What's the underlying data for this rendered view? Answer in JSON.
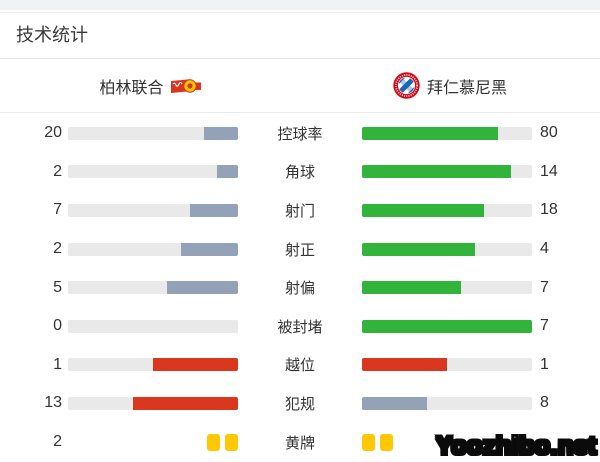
{
  "header": {
    "title": "技术统计"
  },
  "teams": {
    "home": {
      "name": "柏林联合",
      "logo": "union-berlin-crest"
    },
    "away": {
      "name": "拜仁慕尼黑",
      "logo": "bayern-munich-crest"
    }
  },
  "colors": {
    "slate": "#93a2b6",
    "green": "#32b43c",
    "red": "#d9381e",
    "yellow": "#ffc805",
    "track": "#e9e9e9"
  },
  "chart_data": {
    "type": "bar",
    "layout": "head-to-head horizontal bars, home fills grow right-to-left, away fills grow left-to-right",
    "rows": [
      {
        "label": "控球率",
        "home": 20,
        "away": 80,
        "home_pct": 20,
        "away_pct": 80,
        "home_color": "slate",
        "away_color": "green"
      },
      {
        "label": "角球",
        "home": 2,
        "away": 14,
        "home_pct": 12.5,
        "away_pct": 87.5,
        "home_color": "slate",
        "away_color": "green"
      },
      {
        "label": "射门",
        "home": 7,
        "away": 18,
        "home_pct": 28,
        "away_pct": 72,
        "home_color": "slate",
        "away_color": "green"
      },
      {
        "label": "射正",
        "home": 2,
        "away": 4,
        "home_pct": 33.3,
        "away_pct": 66.7,
        "home_color": "slate",
        "away_color": "green"
      },
      {
        "label": "射偏",
        "home": 5,
        "away": 7,
        "home_pct": 41.7,
        "away_pct": 58.3,
        "home_color": "slate",
        "away_color": "green"
      },
      {
        "label": "被封堵",
        "home": 0,
        "away": 7,
        "home_pct": 0,
        "away_pct": 100,
        "home_color": "slate",
        "away_color": "green"
      },
      {
        "label": "越位",
        "home": 1,
        "away": 1,
        "home_pct": 50,
        "away_pct": 50,
        "home_color": "red",
        "away_color": "red"
      },
      {
        "label": "犯规",
        "home": 13,
        "away": 8,
        "home_pct": 61.9,
        "away_pct": 38.1,
        "home_color": "red",
        "away_color": "slate"
      },
      {
        "label": "黄牌",
        "home": 2,
        "away": "",
        "type": "cards",
        "home_cards": 2,
        "away_cards": 2
      }
    ]
  },
  "watermark": {
    "text": "Yoozhibo.net"
  }
}
